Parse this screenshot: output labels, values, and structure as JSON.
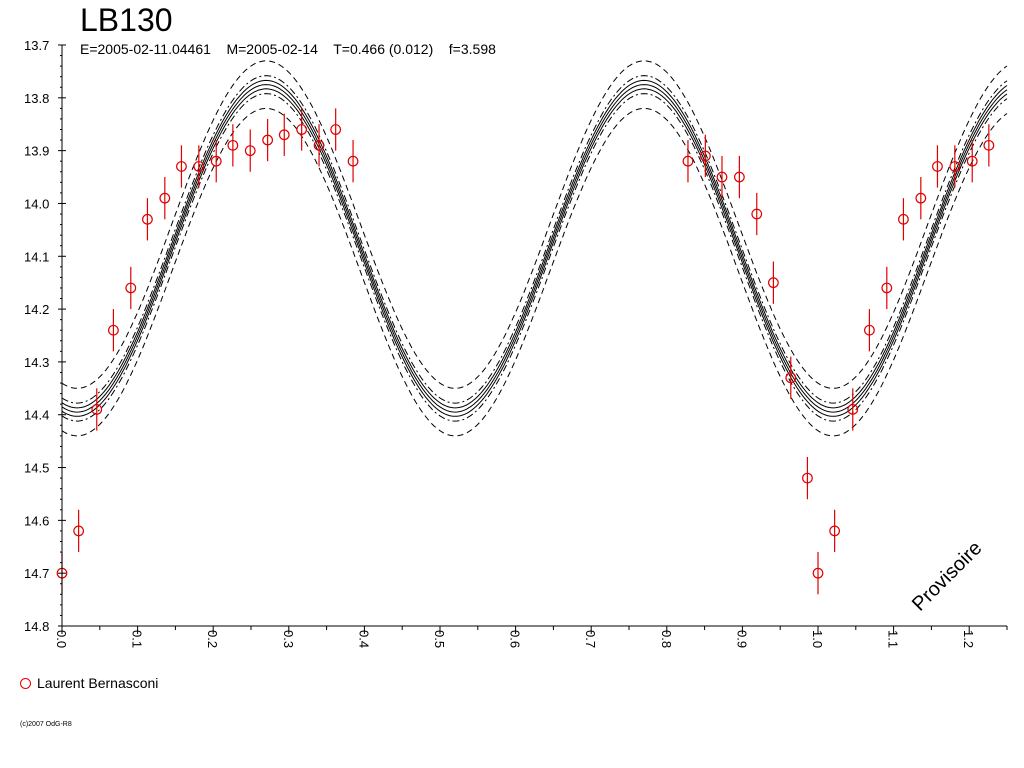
{
  "title": "LB130",
  "subtitle": "E=2005-02-11.04461    M=2005-02-14    T=0.466 (0.012)    f=3.598",
  "watermark": "Provisoire",
  "copyright": "(c)2007 OdG-R8",
  "colors": {
    "data": "#e00000",
    "axis": "#000000",
    "model": "#000000"
  },
  "chart_data": {
    "type": "scatter",
    "title": "LB130",
    "xlabel": "",
    "ylabel": "",
    "xlim": [
      0.0,
      1.25
    ],
    "ylim": [
      13.7,
      14.8
    ],
    "y_inverted": true,
    "grid": false,
    "legend_position": "bottom-left",
    "x_ticks": [
      "0.0",
      "0.1",
      "0.2",
      "0.3",
      "0.4",
      "0.5",
      "0.6",
      "0.7",
      "0.8",
      "0.9",
      "1.0",
      "1.1",
      "1.2"
    ],
    "y_ticks": [
      "13.7",
      "13.8",
      "13.9",
      "14.0",
      "14.1",
      "14.2",
      "14.3",
      "14.4",
      "14.5",
      "14.6",
      "14.7",
      "14.8"
    ],
    "series": [
      {
        "name": "Laurent Bernasconi",
        "marker": "circle",
        "error_bar": 0.04,
        "x": [
          0.0,
          0.022,
          0.046,
          0.068,
          0.091,
          0.113,
          0.136,
          0.158,
          0.181,
          0.204,
          0.226,
          0.249,
          0.272,
          0.294,
          0.317,
          0.34,
          0.362,
          0.385,
          0.828,
          0.851,
          0.873,
          0.896,
          0.919,
          0.941,
          0.964,
          0.986,
          1.0,
          1.022,
          1.046,
          1.068,
          1.091,
          1.113,
          1.136,
          1.158,
          1.181,
          1.204,
          1.226
        ],
        "y": [
          14.7,
          14.62,
          14.39,
          14.24,
          14.16,
          14.03,
          13.99,
          13.93,
          13.93,
          13.92,
          13.89,
          13.9,
          13.88,
          13.87,
          13.86,
          13.89,
          13.86,
          13.92,
          13.92,
          13.91,
          13.95,
          13.95,
          14.02,
          14.15,
          14.33,
          14.52,
          14.7,
          14.62,
          14.39,
          14.24,
          14.16,
          14.03,
          13.99,
          13.93,
          13.93,
          13.92,
          13.89
        ]
      }
    ],
    "model": {
      "form": "sinusoid",
      "period_phase": 0.5,
      "max_phase": 0.27,
      "mean_mag": 14.085,
      "amplitude": 0.31,
      "offsets": [
        0,
        0.008,
        -0.008,
        0.017,
        -0.017,
        0.045,
        -0.045
      ],
      "styles": [
        "solid",
        "solid",
        "solid",
        "dashdot",
        "dashdot",
        "dashed",
        "dashed"
      ]
    }
  }
}
